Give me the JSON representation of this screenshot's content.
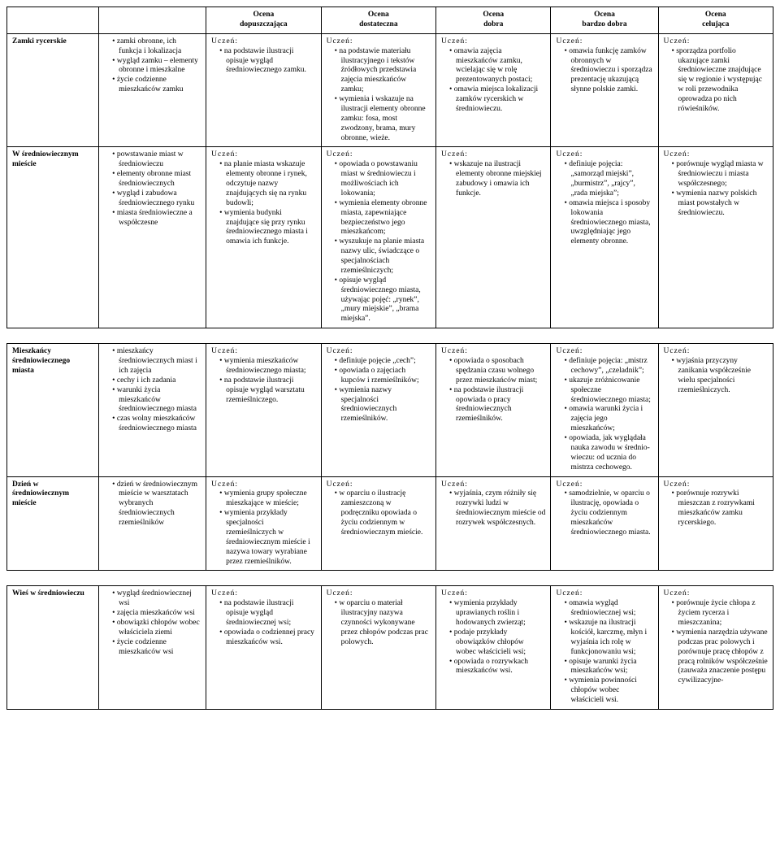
{
  "headers": {
    "blank": "",
    "c1": "Ocena\ndopuszczająca",
    "c2": "Ocena\ndostateczna",
    "c3": "Ocena\ndobra",
    "c4": "Ocena\nbardzo dobra",
    "c5": "Ocena\ncelująca"
  },
  "uczen_label": "Uczeń:",
  "rows": {
    "r1": {
      "title": "Zamki rycerskie",
      "topics": [
        "zamki obronne, ich funkcja i lokalizacja",
        "wygląd zamku – elementy obronne i mieszkalne",
        "życie codzienne mieszkańców zamku"
      ],
      "c1": [
        "na podstawie ilustracji opisuje wygląd średniowiecznego zamku."
      ],
      "c2": [
        "na podstawie materiału ilustracyjnego i tekstów źródłowych przedstawia zajęcia mieszkańców zamku;",
        "wymienia i wskazuje na ilustracji elementy obronne zamku: fosa, most zwodzony, brama, mury obronne, wieże."
      ],
      "c3": [
        "omawia zajęcia mieszkańców zamku, wcielając się w rolę prezentowanych postaci;",
        "omawia miejsca lokalizacji zamków rycerskich w średniowieczu."
      ],
      "c4": [
        "omawia funkcję zamków obronnych w średniowieczu i sporządza prezentację ukazującą słynne polskie zamki."
      ],
      "c5": [
        "sporządza portfolio ukazujące zamki średniowieczne znajdujące się w regionie i występując w roli przewodnika oprowadza po nich rówieśników."
      ]
    },
    "r2": {
      "title": "W średniowiecznym mieście",
      "topics": [
        "powstawanie miast w średniowieczu",
        "elementy obronne miast średniowiecznych",
        "wygląd i zabudowa średniowiecznego rynku",
        "miasta średniowieczne a współczesne"
      ],
      "c1": [
        "na planie miasta wskazuje elementy obronne i rynek, odczytuje nazwy znajdujących się na rynku budowli;",
        "wymienia budynki znajdujące się przy rynku średniowiecznego miasta i omawia ich funkcje."
      ],
      "c2": [
        "opowiada o powstawaniu miast w średniowieczu i możliwościach ich lokowania;",
        "wymienia elementy obronne miasta, zapewniające bezpieczeństwo jego mieszkańcom;",
        "wyszukuje na planie miasta nazwy ulic, świadczące o specjalnościach rzemieślniczych;",
        "opisuje wygląd średniowiecznego miasta, używając pojęć: „rynek”, „mury miejskie”, „brama miejska”."
      ],
      "c3": [
        "wskazuje na ilustracji elementy obronne miejskiej zabudowy i omawia ich funkcje."
      ],
      "c4": [
        "definiuje pojęcia: „samorząd miejski”, „burmistrz”, „rajcy”, „rada miejska”;",
        "omawia miejsca i sposoby lokowania średniowiecznego miasta, uwzględniając jego elementy obronne."
      ],
      "c5": [
        "porównuje wygląd miasta w średniowieczu i miasta współczesnego;",
        "wymienia nazwy polskich miast powstałych w średniowieczu."
      ]
    },
    "r3": {
      "title": "Mieszkańcy średniowiecznego miasta",
      "topics": [
        "mieszkańcy średniowiecznych miast i ich zajęcia",
        "cechy i ich zadania",
        "warunki życia mieszkańców średniowiecznego miasta",
        "czas wolny mieszkańców średniowiecznego miasta"
      ],
      "c1": [
        "wymienia mieszkańców średniowiecznego miasta;",
        "na podstawie ilustracji opisuje wygląd warsztatu rzemieślniczego."
      ],
      "c2": [
        "definiuje pojęcie „cech”;",
        "opowiada o zajęciach kupców i rzemieślników;",
        "wymienia nazwy specjalności średniowiecznych rzemieślników."
      ],
      "c3": [
        "opowiada o sposobach spędzania czasu wolnego przez mieszkańców miast;",
        "na podstawie ilustracji opowiada o pracy średniowiecznych rzemieślników."
      ],
      "c4": [
        "definiuje pojęcia: „mistrz cechowy”, „czeladnik”;",
        "ukazuje zróżnicowanie społeczne średniowiecznego miasta;",
        "omawia warunki życia i zajęcia jego mieszkańców;",
        "opowiada, jak wyglądała nauka zawodu w średnio-wieczu: od ucznia do mistrza cechowego."
      ],
      "c5": [
        "wyjaśnia przyczyny zanikania współcześnie wielu specjalności rzemieślniczych."
      ]
    },
    "r4": {
      "title": "Dzień w średniowiecznym mieście",
      "topics": [
        "dzień w średniowiecznym mieście w warsztatach wybranych średniowiecznych rzemieślników"
      ],
      "c1": [
        "wymienia grupy społeczne mieszkające w mieście;",
        "wymienia przykłady specjalności rzemieślniczych w średniowiecznym mieście i nazywa towary wyrabiane przez rzemieślników."
      ],
      "c2": [
        "w oparciu o ilustrację zamieszczoną w podręczniku opowiada o życiu codziennym w średniowiecznym mieście."
      ],
      "c3": [
        "wyjaśnia, czym różniły się rozrywki ludzi w średniowiecznym mieście od rozrywek współczesnych."
      ],
      "c4": [
        "samodzielnie, w oparciu o ilustrację, opowiada o życiu codziennym mieszkańców średniowiecznego miasta."
      ],
      "c5": [
        "porównuje rozrywki mieszczan z rozrywkami mieszkańców zamku rycerskiego."
      ]
    },
    "r5": {
      "title": "Wieś w średniowieczu",
      "topics": [
        "wygląd średniowiecznej wsi",
        "zajęcia mieszkańców wsi",
        "obowiązki chłopów wobec właściciela ziemi",
        "życie codzienne mieszkańców wsi"
      ],
      "c1": [
        "na podstawie ilustracji opisuje wygląd średniowiecznej wsi;",
        "opowiada o codziennej pracy mieszkańców wsi."
      ],
      "c2": [
        "w oparciu o materiał ilustracyjny nazywa czynności wykonywane przez chłopów podczas prac polowych."
      ],
      "c3": [
        "wymienia przykłady uprawianych roślin i hodowanych zwierząt;",
        "podaje przykłady obowiązków chłopów wobec właścicieli wsi;",
        "opowiada o rozrywkach mieszkańców wsi."
      ],
      "c4": [
        "omawia wygląd średniowiecznej wsi;",
        "wskazuje na ilustracji kościół, karczmę, młyn i wyjaśnia ich rolę w funkcjonowaniu wsi;",
        "opisuje warunki życia mieszkańców wsi;",
        "wymienia powinności chłopów wobec właścicieli wsi."
      ],
      "c5": [
        "porównuje życie chłopa z życiem rycerza i mieszczanina;",
        "wymienia narzędzia używane podczas prac polowych i porównuje pracę chłopów z pracą rolników współcześnie (zauważa znaczenie postępu cywilizacyjne-"
      ]
    }
  }
}
